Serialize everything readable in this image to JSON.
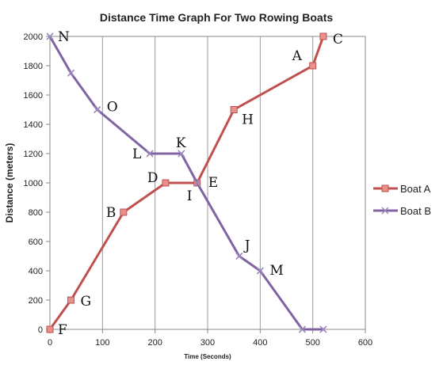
{
  "chart_data": {
    "type": "line",
    "title": "Distance Time Graph For Two Rowing Boats",
    "xlabel": "Time (Seconds)",
    "ylabel": "Distance (meters)",
    "xlim": [
      0,
      600
    ],
    "ylim": [
      0,
      2000
    ],
    "x_ticks": [
      0,
      100,
      200,
      300,
      400,
      500,
      600
    ],
    "y_ticks": [
      0,
      200,
      400,
      600,
      800,
      1000,
      1200,
      1400,
      1600,
      1800,
      2000
    ],
    "grid": "vertical",
    "legend_position": "right",
    "series": [
      {
        "name": "Boat A",
        "color": "#C0504D",
        "marker_color": "#E8908C",
        "marker": "square",
        "x": [
          0,
          40,
          140,
          220,
          280,
          350,
          500,
          520
        ],
        "y": [
          0,
          200,
          800,
          1000,
          1000,
          1500,
          1800,
          2000
        ],
        "point_labels": [
          "F",
          "G",
          "B",
          "D",
          "",
          "H",
          "A",
          "C"
        ]
      },
      {
        "name": "Boat B",
        "color": "#8064A2",
        "marker_color": "#9D88BE",
        "marker": "x",
        "x": [
          0,
          40,
          90,
          190,
          250,
          280,
          360,
          400,
          480,
          520
        ],
        "y": [
          2000,
          1750,
          1500,
          1200,
          1200,
          1000,
          500,
          400,
          0,
          0
        ],
        "point_labels": [
          "N",
          "",
          "O",
          "L",
          "K",
          "I",
          "J",
          "M",
          "",
          ""
        ]
      }
    ],
    "annotations": [
      {
        "text": "E",
        "x": 280,
        "y": 1000
      }
    ]
  }
}
